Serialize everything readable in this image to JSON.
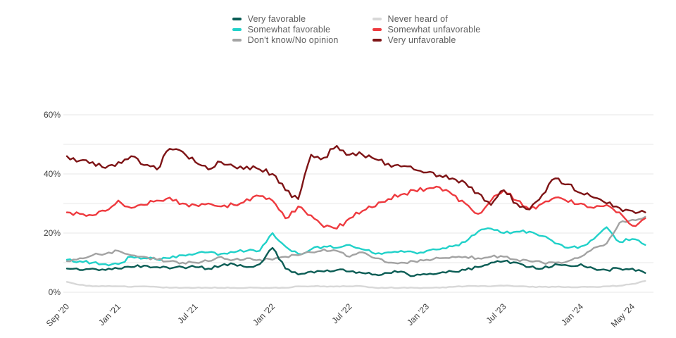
{
  "legend": {
    "columns": [
      [
        "Very favorable",
        "Somewhat favorable",
        "Don't know/No opinion"
      ],
      [
        "Never heard of",
        "Somewhat unfavorable",
        "Very unfavorable"
      ]
    ]
  },
  "chart_data": {
    "type": "line",
    "title": "",
    "xlabel": "",
    "ylabel": "",
    "ylim": [
      0,
      60
    ],
    "grid": "horizontal",
    "legend_position": "top-center",
    "y_gridlines": [
      0,
      10,
      20,
      30,
      40,
      50,
      60
    ],
    "y_ticks": [
      {
        "value": 0,
        "label": "0%"
      },
      {
        "value": 20,
        "label": "20%"
      },
      {
        "value": 40,
        "label": "40%"
      },
      {
        "value": 60,
        "label": "60%"
      }
    ],
    "x": [
      "Sep '20",
      "Oct '20",
      "Nov '20",
      "Dec '20",
      "Jan '21",
      "Feb '21",
      "Mar '21",
      "Apr '21",
      "May '21",
      "Jun '21",
      "Jul '21",
      "Aug '21",
      "Sep '21",
      "Oct '21",
      "Nov '21",
      "Dec '21",
      "Jan '22",
      "Feb '22",
      "Mar '22",
      "Apr '22",
      "May '22",
      "Jun '22",
      "Jul '22",
      "Aug '22",
      "Sep '22",
      "Oct '22",
      "Nov '22",
      "Dec '22",
      "Jan '23",
      "Feb '23",
      "Mar '23",
      "Apr '23",
      "May '23",
      "Jun '23",
      "Jul '23",
      "Aug '23",
      "Sep '23",
      "Oct '23",
      "Nov '23",
      "Dec '23",
      "Jan '24",
      "Feb '24",
      "Mar '24",
      "Apr '24",
      "May '24",
      "Jun '24"
    ],
    "x_ticks": [
      {
        "month_index": 0,
        "label": "Sep '20"
      },
      {
        "month_index": 4,
        "label": "Jan '21"
      },
      {
        "month_index": 10,
        "label": "Jul '21"
      },
      {
        "month_index": 16,
        "label": "Jan '22"
      },
      {
        "month_index": 22,
        "label": "Jul '22"
      },
      {
        "month_index": 28,
        "label": "Jan '23"
      },
      {
        "month_index": 34,
        "label": "Jul '23"
      },
      {
        "month_index": 40,
        "label": "Jan '24"
      },
      {
        "month_index": 44,
        "label": "May '24"
      }
    ],
    "unit": "percent",
    "series": [
      {
        "name": "Very favorable",
        "color": "#0b5d55",
        "values": [
          8,
          7.5,
          8,
          7.5,
          8,
          8.5,
          9,
          8.5,
          8,
          8.5,
          8.5,
          8,
          9,
          9.5,
          8.5,
          9.5,
          15,
          8,
          6,
          7,
          7,
          7.5,
          7,
          6.5,
          6,
          6.5,
          7,
          5.5,
          6,
          6.5,
          7,
          7.5,
          8.5,
          10,
          10.5,
          10,
          8.5,
          8,
          9.5,
          9,
          9.5,
          8,
          7.5,
          8,
          8,
          6.5
        ]
      },
      {
        "name": "Somewhat favorable",
        "color": "#21d1c9",
        "values": [
          11,
          10.5,
          10,
          9.5,
          9.5,
          12,
          11.5,
          11,
          11.5,
          12.5,
          13,
          13.5,
          13,
          13.5,
          14,
          14,
          20,
          15.5,
          13,
          14.5,
          15.5,
          15,
          16,
          14.5,
          13,
          13.5,
          14,
          13.5,
          14,
          14.5,
          15.5,
          17,
          20.5,
          21.5,
          20,
          20.5,
          20.5,
          19,
          16.5,
          15,
          15.5,
          18,
          22,
          17,
          18,
          16
        ]
      },
      {
        "name": "Don't know/No opinion",
        "color": "#a3a3a3",
        "values": [
          10.5,
          11.5,
          12.5,
          13,
          14,
          12.5,
          12,
          11,
          10.5,
          10,
          10,
          10.5,
          12,
          11,
          11.5,
          11,
          11,
          12,
          12.5,
          13.5,
          14.5,
          14,
          12,
          13.5,
          11.5,
          10,
          10,
          10.5,
          11,
          11.5,
          12,
          12,
          11.5,
          12,
          12,
          11,
          10.5,
          10,
          10,
          10.5,
          12,
          15,
          16.5,
          23.5,
          24.5,
          25.5
        ]
      },
      {
        "name": "Never heard of",
        "color": "#d8d8d8",
        "values": [
          3.5,
          2.5,
          2,
          2,
          2,
          1.8,
          2,
          1.8,
          1.5,
          1.5,
          1.5,
          1.5,
          1.5,
          1.5,
          1.5,
          1.5,
          1.5,
          1.5,
          2,
          2,
          2,
          2,
          2,
          2,
          1.5,
          1.5,
          1.5,
          1.5,
          1.5,
          1.5,
          1.8,
          2,
          2,
          2,
          2.2,
          2,
          1.8,
          1.8,
          1.8,
          1.8,
          1.8,
          1.8,
          2,
          2.2,
          2.8,
          3.8
        ]
      },
      {
        "name": "Somewhat unfavorable",
        "color": "#ee3a3f",
        "values": [
          27,
          26.5,
          26,
          27.5,
          31,
          28.5,
          29.5,
          31,
          32,
          30,
          29.5,
          30,
          29,
          29.5,
          31.5,
          32.5,
          31,
          25,
          29,
          26,
          22,
          21.5,
          25,
          27.5,
          29,
          31.5,
          33,
          34.5,
          35,
          35.5,
          33,
          30,
          26.5,
          31,
          34.5,
          31,
          28,
          30,
          32,
          30.5,
          30,
          28.5,
          29.5,
          27,
          22.5,
          25
        ]
      },
      {
        "name": "Very unfavorable",
        "color": "#7e1416",
        "values": [
          46,
          44.5,
          44,
          42,
          44,
          46,
          43,
          41.5,
          48.5,
          47.5,
          44,
          41.5,
          44,
          42.5,
          42.5,
          41.5,
          40,
          34.5,
          31.5,
          46.5,
          45.5,
          49.5,
          46.5,
          46.5,
          45,
          43.5,
          42.5,
          41.5,
          40.5,
          39.5,
          38.5,
          37,
          33.5,
          29.5,
          34.5,
          30,
          28,
          33,
          38.5,
          36.5,
          33.5,
          32,
          30,
          28.5,
          27.5,
          27
        ]
      }
    ]
  }
}
